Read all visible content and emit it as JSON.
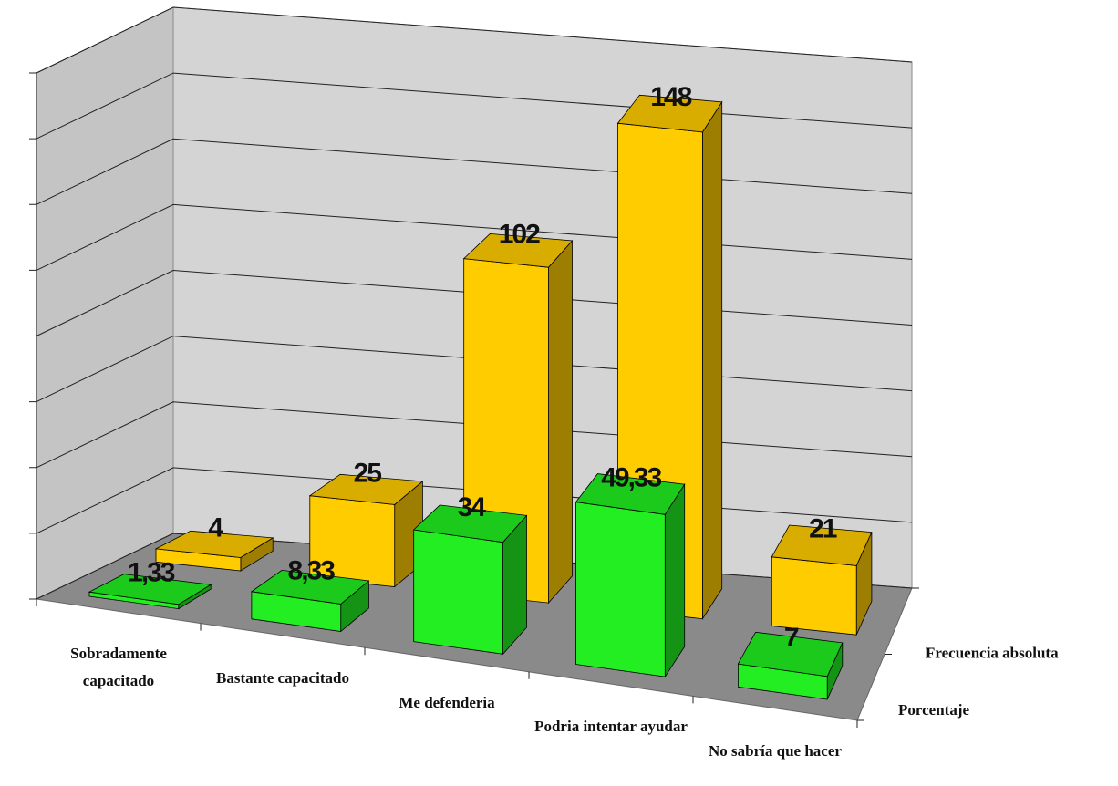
{
  "chart_data": {
    "type": "bar3d",
    "categories": [
      "Sobradamente capacitado",
      "Bastante capacitado",
      "Me defenderia",
      "Podria intentar ayudar",
      "No sabría que hacer"
    ],
    "series": [
      {
        "name": "Porcentaje",
        "color": "#22ee22",
        "values": [
          1.33,
          8.33,
          34,
          49.33,
          7
        ],
        "value_labels": [
          "1,33",
          "8,33",
          "34",
          "49,33",
          "7"
        ]
      },
      {
        "name": "Frecuencia absoluta",
        "color": "#ffcc00",
        "values": [
          4,
          25,
          102,
          148,
          21
        ]
      }
    ],
    "ylim": [
      0,
      160
    ],
    "yticks": [
      0,
      20,
      40,
      60,
      80,
      100,
      120,
      140,
      160
    ],
    "grid": true
  }
}
